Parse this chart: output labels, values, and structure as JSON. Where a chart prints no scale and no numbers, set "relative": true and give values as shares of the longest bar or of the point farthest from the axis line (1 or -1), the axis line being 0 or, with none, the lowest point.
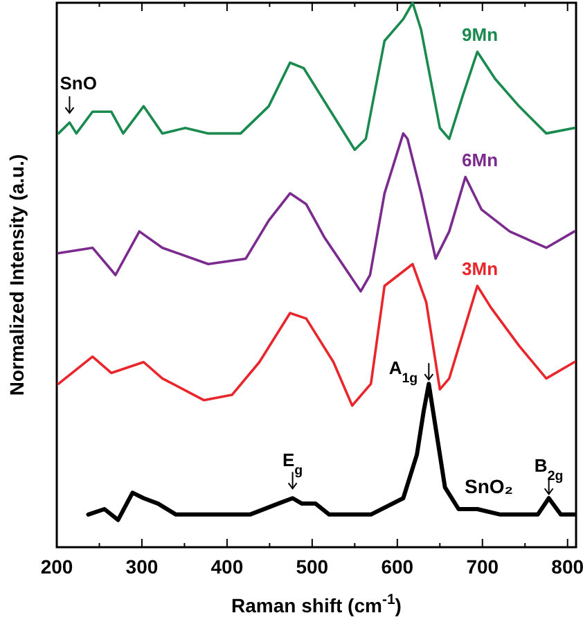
{
  "chart_data": {
    "type": "line",
    "relative": true,
    "xlabel": "Raman shift (cm$^{-1}$)",
    "ylabel": "Normalized Intensity (a.u.)",
    "xlim": [
      200,
      810
    ],
    "xticks": [
      200,
      {
        "value": 250,
        "label": null
      },
      300,
      {
        "value": 350,
        "label": null
      },
      400,
      {
        "value": 450,
        "label": null
      },
      500,
      {
        "value": 550,
        "label": null
      },
      600,
      {
        "value": 650,
        "label": null
      },
      700,
      {
        "value": 750,
        "label": null
      },
      800
    ],
    "grid": false,
    "series": [
      {
        "name": "9Mn",
        "color": "#1a8a4e",
        "x": [
          202,
          215,
          223,
          242,
          264,
          278,
          302,
          324,
          351,
          378,
          416,
          449,
          474,
          490,
          514,
          550,
          563,
          585,
          607,
          618,
          628,
          650,
          661,
          677,
          694,
          715,
          743,
          775,
          808
        ],
        "values": [
          0.76,
          0.78,
          0.76,
          0.8,
          0.8,
          0.76,
          0.81,
          0.76,
          0.77,
          0.76,
          0.76,
          0.81,
          0.89,
          0.88,
          0.82,
          0.73,
          0.75,
          0.93,
          0.97,
          1.0,
          0.95,
          0.77,
          0.75,
          0.83,
          0.91,
          0.86,
          0.81,
          0.76,
          0.77
        ]
      },
      {
        "name": "6Mn",
        "color": "#7b2a8e",
        "x": [
          202,
          242,
          269,
          297,
          324,
          378,
          422,
          449,
          474,
          493,
          514,
          557,
          568,
          585,
          607,
          612,
          628,
          645,
          661,
          680,
          699,
          732,
          775,
          808
        ],
        "values": [
          0.54,
          0.55,
          0.5,
          0.58,
          0.55,
          0.52,
          0.53,
          0.6,
          0.65,
          0.63,
          0.57,
          0.47,
          0.5,
          0.65,
          0.76,
          0.75,
          0.65,
          0.53,
          0.58,
          0.68,
          0.62,
          0.58,
          0.55,
          0.58
        ]
      },
      {
        "name": "3Mn",
        "color": "#e8262b",
        "x": [
          202,
          242,
          264,
          302,
          324,
          373,
          406,
          438,
          474,
          493,
          525,
          547,
          569,
          585,
          618,
          634,
          650,
          661,
          694,
          710,
          743,
          775,
          808
        ],
        "values": [
          0.3,
          0.35,
          0.32,
          0.34,
          0.31,
          0.27,
          0.28,
          0.34,
          0.43,
          0.42,
          0.34,
          0.26,
          0.3,
          0.48,
          0.52,
          0.45,
          0.29,
          0.31,
          0.48,
          0.44,
          0.37,
          0.31,
          0.34
        ]
      },
      {
        "color": "#000000",
        "x": [
          237,
          256,
          272,
          289,
          302,
          319,
          340,
          395,
          427,
          460,
          477,
          488,
          504,
          520,
          569,
          607,
          623,
          631,
          637,
          645,
          656,
          672,
          694,
          721,
          765,
          778,
          792,
          808
        ],
        "values": [
          0.06,
          0.07,
          0.05,
          0.1,
          0.09,
          0.08,
          0.06,
          0.06,
          0.06,
          0.08,
          0.09,
          0.08,
          0.08,
          0.06,
          0.06,
          0.09,
          0.17,
          0.25,
          0.3,
          0.22,
          0.11,
          0.07,
          0.07,
          0.06,
          0.06,
          0.09,
          0.06,
          0.06
        ]
      }
    ],
    "annotations": [
      {
        "text": "SnO",
        "x": 215,
        "y": 0.79
      },
      {
        "text": "E$_{g}$",
        "x": 477,
        "y": 0.1
      },
      {
        "text": "A$_{1g}$",
        "x": 637,
        "y": 0.3
      },
      {
        "text": "B$_{2g}$",
        "x": 778,
        "y": 0.09
      },
      "SnO₂"
    ]
  }
}
